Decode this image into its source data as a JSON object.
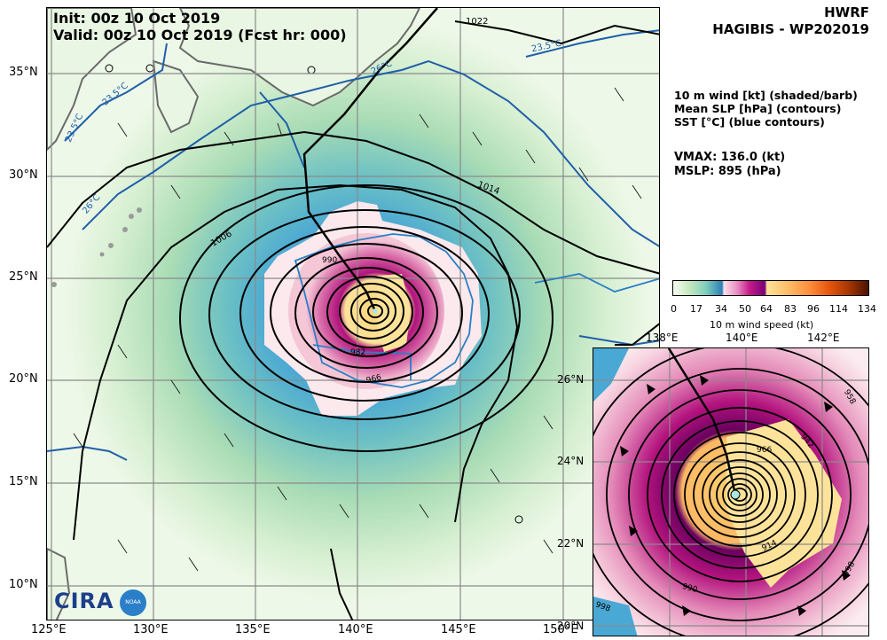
{
  "header": {
    "model": "HWRF",
    "storm": "HAGIBIS - WP202019",
    "init": "Init:  00z 10 Oct 2019",
    "valid": "Valid: 00z 10 Oct 2019 (Fcst hr: 000)"
  },
  "legend": {
    "line1": "10 m wind [kt] (shaded/barb)",
    "line2": "Mean SLP [hPa] (contours)",
    "line3": "SST [°C] (blue contours)"
  },
  "stats": {
    "vmax": "VMAX: 136.0 (kt)",
    "mslp": "MSLP:  895 (hPa)"
  },
  "colorbar": {
    "ticks": [
      "0",
      "17",
      "34",
      "50",
      "64",
      "83",
      "96",
      "114",
      "134"
    ],
    "label": "10 m wind speed (kt)",
    "colors": [
      "#f7fcf0",
      "#7fcdbb",
      "#2c7fb8",
      "#fbe0e6",
      "#c51b8a",
      "#fde39a",
      "#fd8d3c",
      "#a63603",
      "#4a1200"
    ]
  },
  "main_axes": {
    "lon_labels": [
      "125°E",
      "130°E",
      "135°E",
      "140°E",
      "145°E",
      "150°E"
    ],
    "lat_labels": [
      "35°N",
      "30°N",
      "25°N",
      "20°N",
      "15°N",
      "10°N"
    ]
  },
  "main_contour_labels": {
    "c1022": "1022",
    "c1014": "1014",
    "c1006": "1006",
    "c990": "990",
    "c982": "982",
    "c966": "966",
    "sst235a": "23.5°C",
    "sst235b": "23.5°C",
    "sst235c": "23.5°C",
    "sst26a": "26°C",
    "sst26b": "26°C"
  },
  "inset_axes": {
    "lon_labels": [
      "138°E",
      "140°E",
      "142°E"
    ],
    "lat_labels": [
      "26°N",
      "24°N",
      "22°N",
      "20°N"
    ]
  },
  "inset_contour_labels": {
    "c958": "958",
    "c942": "942",
    "c966": "966",
    "c914": "914",
    "c990": "990",
    "c998": "998",
    "c998b": "998"
  },
  "logo": {
    "text": "CIRA",
    "badge": "NOAA"
  }
}
